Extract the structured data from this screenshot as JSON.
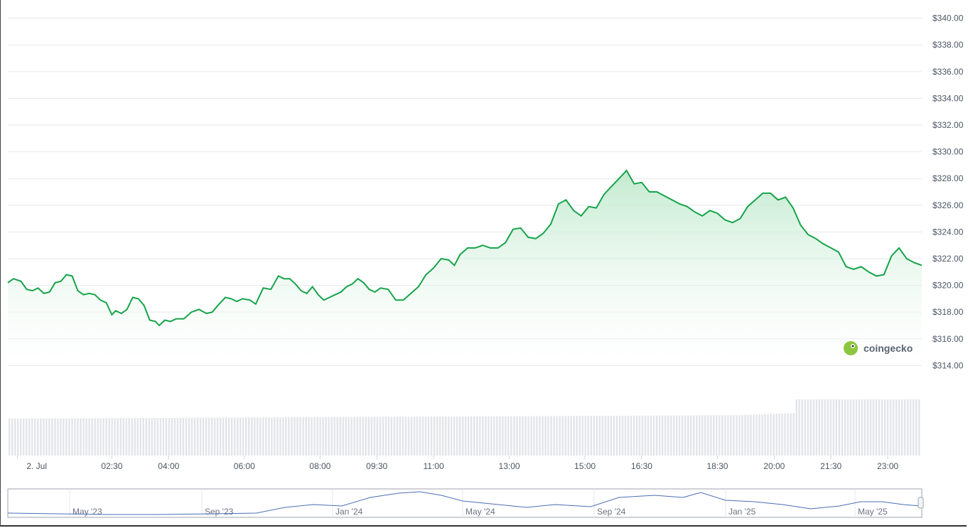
{
  "chart_data": {
    "type": "area",
    "y_tick_labels": [
      "$314.00",
      "$316.00",
      "$318.00",
      "$320.00",
      "$322.00",
      "$324.00",
      "$326.00",
      "$328.00",
      "$330.00",
      "$332.00",
      "$334.00",
      "$336.00",
      "$338.00",
      "$340.00"
    ],
    "ylim": [
      313.7,
      340.3
    ],
    "x_tick_labels": [
      "2. Jul",
      "02:30",
      "04:00",
      "06:00",
      "08:00",
      "09:30",
      "11:00",
      "13:00",
      "15:00",
      "16:30",
      "18:30",
      "20:00",
      "21:30",
      "23:00"
    ],
    "x_hours": [
      0,
      2.5,
      4,
      6,
      8,
      9.5,
      11,
      13,
      15,
      16.5,
      18.5,
      20,
      21.5,
      23
    ],
    "x_domain_hours": [
      -0.25,
      23.9
    ],
    "series": [
      {
        "points": [
          [
            -0.25,
            320.2
          ],
          [
            -0.1,
            320.5
          ],
          [
            0.1,
            320.3
          ],
          [
            0.25,
            319.7
          ],
          [
            0.4,
            319.6
          ],
          [
            0.55,
            319.8
          ],
          [
            0.7,
            319.4
          ],
          [
            0.85,
            319.5
          ],
          [
            1.0,
            320.2
          ],
          [
            1.15,
            320.3
          ],
          [
            1.3,
            320.8
          ],
          [
            1.45,
            320.7
          ],
          [
            1.6,
            319.6
          ],
          [
            1.75,
            319.3
          ],
          [
            1.9,
            319.4
          ],
          [
            2.05,
            319.3
          ],
          [
            2.2,
            318.9
          ],
          [
            2.35,
            318.7
          ],
          [
            2.5,
            317.8
          ],
          [
            2.6,
            318.1
          ],
          [
            2.75,
            317.9
          ],
          [
            2.9,
            318.2
          ],
          [
            3.05,
            319.1
          ],
          [
            3.2,
            319.0
          ],
          [
            3.35,
            318.5
          ],
          [
            3.5,
            317.4
          ],
          [
            3.65,
            317.3
          ],
          [
            3.75,
            317.0
          ],
          [
            3.9,
            317.4
          ],
          [
            4.05,
            317.3
          ],
          [
            4.2,
            317.5
          ],
          [
            4.4,
            317.5
          ],
          [
            4.6,
            318.0
          ],
          [
            4.8,
            318.2
          ],
          [
            5.0,
            317.9
          ],
          [
            5.15,
            318.0
          ],
          [
            5.3,
            318.5
          ],
          [
            5.5,
            319.1
          ],
          [
            5.65,
            319.0
          ],
          [
            5.8,
            318.8
          ],
          [
            5.95,
            319.0
          ],
          [
            6.15,
            318.9
          ],
          [
            6.3,
            318.6
          ],
          [
            6.5,
            319.8
          ],
          [
            6.7,
            319.7
          ],
          [
            6.9,
            320.7
          ],
          [
            7.05,
            320.5
          ],
          [
            7.2,
            320.5
          ],
          [
            7.35,
            320.1
          ],
          [
            7.5,
            319.6
          ],
          [
            7.65,
            319.4
          ],
          [
            7.8,
            319.9
          ],
          [
            7.95,
            319.3
          ],
          [
            8.1,
            318.9
          ],
          [
            8.25,
            319.1
          ],
          [
            8.4,
            319.3
          ],
          [
            8.55,
            319.5
          ],
          [
            8.7,
            319.9
          ],
          [
            8.85,
            320.1
          ],
          [
            9.0,
            320.5
          ],
          [
            9.15,
            320.2
          ],
          [
            9.3,
            319.7
          ],
          [
            9.45,
            319.5
          ],
          [
            9.6,
            319.8
          ],
          [
            9.8,
            319.7
          ],
          [
            10.0,
            318.9
          ],
          [
            10.2,
            318.9
          ],
          [
            10.4,
            319.4
          ],
          [
            10.6,
            319.9
          ],
          [
            10.8,
            320.8
          ],
          [
            11.0,
            321.3
          ],
          [
            11.2,
            322.0
          ],
          [
            11.4,
            321.9
          ],
          [
            11.55,
            321.5
          ],
          [
            11.7,
            322.3
          ],
          [
            11.9,
            322.8
          ],
          [
            12.1,
            322.8
          ],
          [
            12.3,
            323.0
          ],
          [
            12.5,
            322.8
          ],
          [
            12.7,
            322.8
          ],
          [
            12.9,
            323.2
          ],
          [
            13.1,
            324.2
          ],
          [
            13.3,
            324.3
          ],
          [
            13.5,
            323.6
          ],
          [
            13.7,
            323.5
          ],
          [
            13.9,
            323.9
          ],
          [
            14.1,
            324.6
          ],
          [
            14.3,
            326.1
          ],
          [
            14.5,
            326.4
          ],
          [
            14.7,
            325.6
          ],
          [
            14.9,
            325.2
          ],
          [
            15.1,
            325.9
          ],
          [
            15.3,
            325.8
          ],
          [
            15.5,
            326.8
          ],
          [
            15.7,
            327.4
          ],
          [
            15.9,
            328.0
          ],
          [
            16.1,
            328.6
          ],
          [
            16.3,
            327.6
          ],
          [
            16.5,
            327.7
          ],
          [
            16.7,
            327.0
          ],
          [
            16.9,
            327.0
          ],
          [
            17.1,
            326.7
          ],
          [
            17.3,
            326.4
          ],
          [
            17.5,
            326.1
          ],
          [
            17.7,
            325.9
          ],
          [
            17.9,
            325.5
          ],
          [
            18.1,
            325.2
          ],
          [
            18.3,
            325.6
          ],
          [
            18.5,
            325.4
          ],
          [
            18.7,
            324.9
          ],
          [
            18.9,
            324.7
          ],
          [
            19.1,
            325.0
          ],
          [
            19.3,
            325.9
          ],
          [
            19.5,
            326.4
          ],
          [
            19.7,
            326.9
          ],
          [
            19.9,
            326.9
          ],
          [
            20.1,
            326.4
          ],
          [
            20.3,
            326.6
          ],
          [
            20.5,
            325.8
          ],
          [
            20.7,
            324.5
          ],
          [
            20.9,
            323.8
          ],
          [
            21.1,
            323.5
          ],
          [
            21.3,
            323.1
          ],
          [
            21.5,
            322.8
          ],
          [
            21.7,
            322.5
          ],
          [
            21.9,
            321.4
          ],
          [
            22.1,
            321.2
          ],
          [
            22.3,
            321.4
          ],
          [
            22.5,
            321.0
          ],
          [
            22.7,
            320.7
          ],
          [
            22.9,
            320.8
          ],
          [
            23.1,
            322.2
          ],
          [
            23.3,
            322.8
          ],
          [
            23.5,
            322.0
          ],
          [
            23.7,
            321.7
          ],
          [
            23.9,
            321.5
          ]
        ]
      }
    ],
    "navigator": {
      "x_tick_labels": [
        "May '23",
        "Sep '23",
        "Jan '24",
        "May '24",
        "Sep '24",
        "Jan '25",
        "May '25"
      ]
    }
  },
  "brand": {
    "name": "coingecko"
  },
  "colors": {
    "line": "#16a34a",
    "area_top": "#bfe9cc",
    "grid": "#e5e7eb",
    "volume": "#e2e4e8",
    "navigator_line": "#4a6fb5",
    "navigator_frame": "#9ca3af"
  }
}
